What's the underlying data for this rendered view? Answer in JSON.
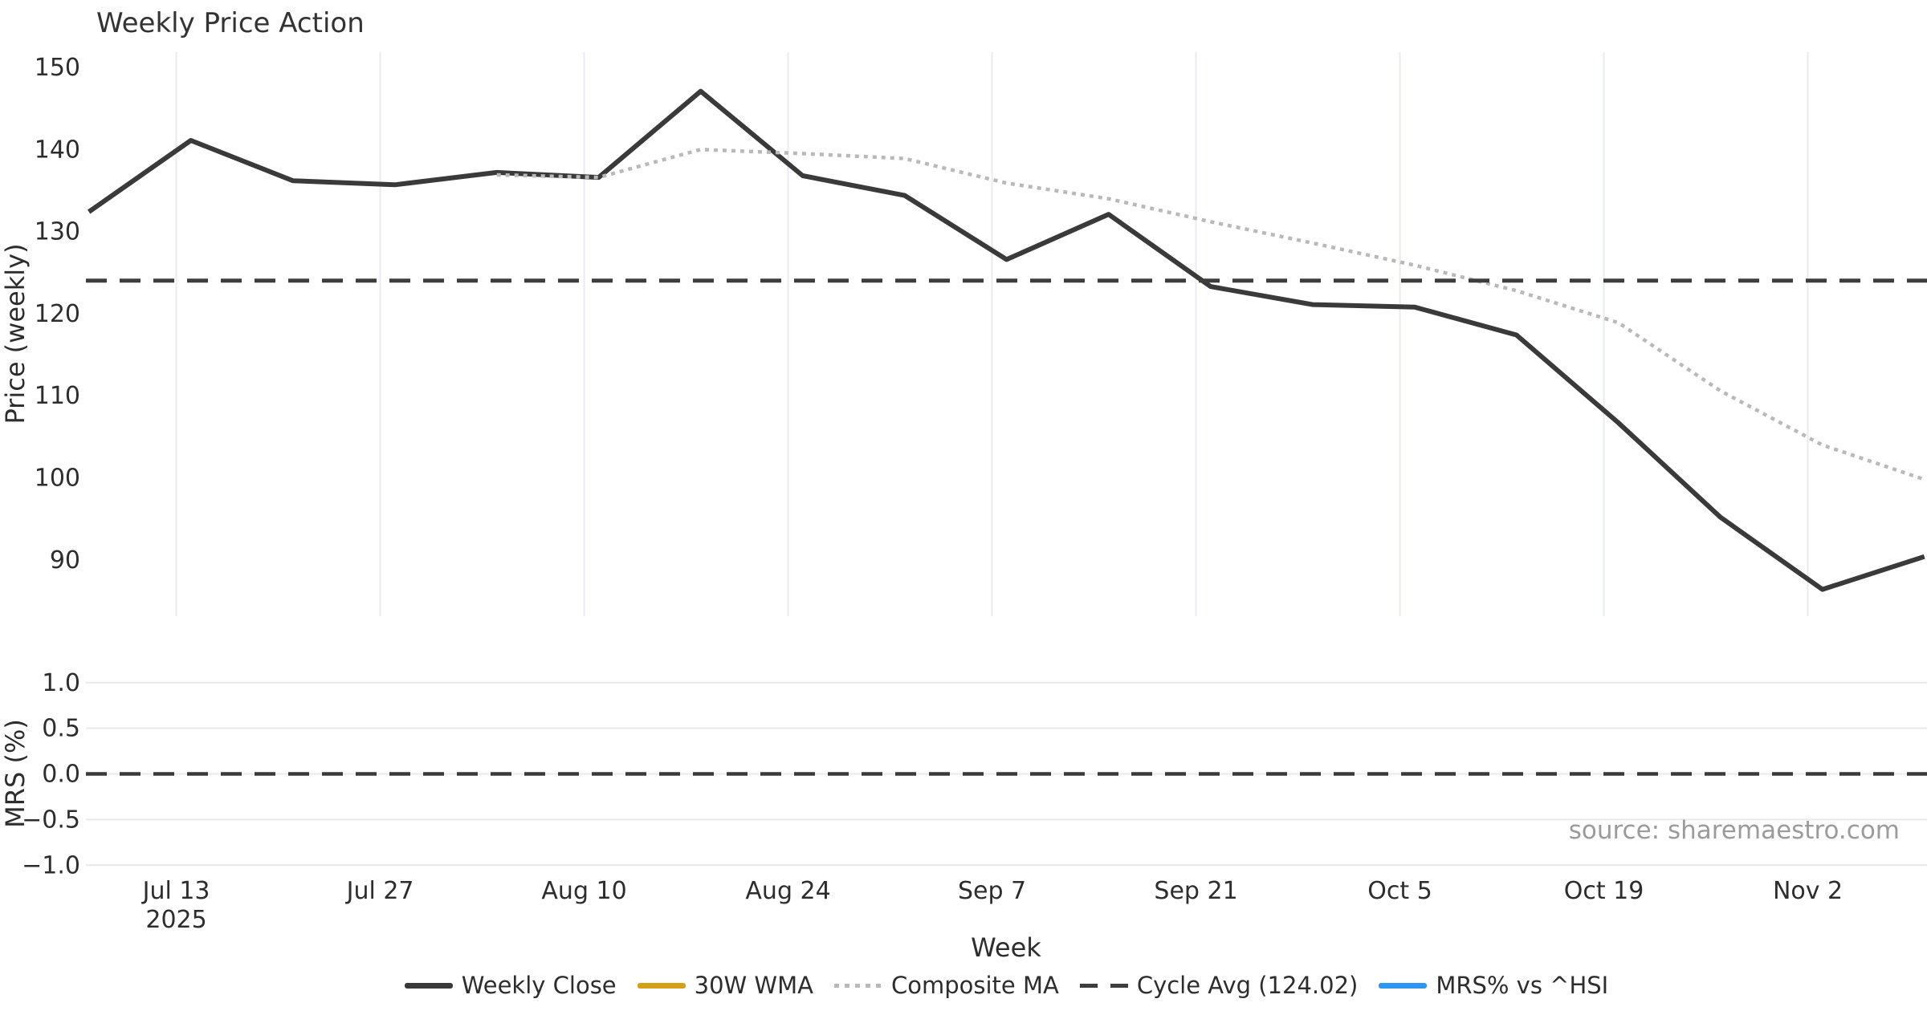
{
  "title": "Weekly Price Action",
  "source_credit": "source: sharemaestro.com",
  "colors": {
    "background": "#ffffff",
    "text": "#2d2d2d",
    "weekly_close": "#3a3a3a",
    "wma_gold": "#d4a017",
    "composite_gray": "#b9b9b9",
    "cycle_dash": "#3d3d3d",
    "mrs_blue": "#2e96f0",
    "grid_vertical": "#e9ecf3",
    "grid_horizontal": "#e9e9e9",
    "source_text": "#9b9b9b"
  },
  "chart_data": {
    "type": "line",
    "title": "Weekly Price Action",
    "xlabel": "Week",
    "x_unit_days": "days since first weekly point (Mon 2025-07-07)",
    "x_ticks": [
      {
        "day": 6,
        "label": "Jul 13",
        "sublabel": "2025"
      },
      {
        "day": 20,
        "label": "Jul 27",
        "sublabel": ""
      },
      {
        "day": 34,
        "label": "Aug 10",
        "sublabel": ""
      },
      {
        "day": 48,
        "label": "Aug 24",
        "sublabel": ""
      },
      {
        "day": 62,
        "label": "Sep 7",
        "sublabel": ""
      },
      {
        "day": 76,
        "label": "Sep 21",
        "sublabel": ""
      },
      {
        "day": 90,
        "label": "Oct 5",
        "sublabel": ""
      },
      {
        "day": 104,
        "label": "Oct 19",
        "sublabel": ""
      },
      {
        "day": 118,
        "label": "Nov 2",
        "sublabel": ""
      }
    ],
    "xlim_days": [
      -0.2,
      126.2
    ],
    "grid": "vertical-on-price-panel, horizontal-on-mrs-panel",
    "legend_position": "bottom-center",
    "panels": [
      {
        "ylabel": "Price (weekly)",
        "ylim": [
          83.1,
          151.9
        ],
        "y_ticks": [
          {
            "v": 150,
            "label": "150"
          },
          {
            "v": 140,
            "label": "140"
          },
          {
            "v": 130,
            "label": "130"
          },
          {
            "v": 120,
            "label": "120"
          },
          {
            "v": 110,
            "label": "110"
          },
          {
            "v": 100,
            "label": "100"
          },
          {
            "v": 90,
            "label": "90"
          }
        ],
        "series": [
          {
            "name": "Weekly Close",
            "style": "solid",
            "color": "#3a3a3a",
            "line_width": 6,
            "visible": true,
            "days": [
              0,
              7,
              14,
              21,
              28,
              35,
              42,
              49,
              56,
              63,
              70,
              77,
              84,
              91,
              98,
              105,
              112,
              119,
              126
            ],
            "values": [
              132.4,
              141.1,
              136.2,
              135.7,
              137.2,
              136.6,
              147.1,
              136.8,
              134.4,
              126.6,
              132.1,
              123.3,
              121.1,
              120.8,
              117.4,
              106.7,
              95.2,
              86.4,
              90.4
            ]
          },
          {
            "name": "30W WMA",
            "style": "solid",
            "color": "#d4a017",
            "line_width": 6,
            "visible": false,
            "days": [],
            "values": []
          },
          {
            "name": "Composite MA",
            "style": "dotted",
            "color": "#b9b9b9",
            "line_width": 4.5,
            "visible": true,
            "days": [
              28,
              35,
              42,
              49,
              56,
              63,
              70,
              77,
              84,
              91,
              98,
              105,
              112,
              119,
              126
            ],
            "values": [
              136.9,
              136.6,
              140.0,
              139.5,
              138.9,
              135.9,
              134.0,
              131.2,
              128.6,
              125.9,
              122.8,
              118.9,
              110.6,
              104.0,
              99.8
            ]
          },
          {
            "name": "Cycle Avg (124.02)",
            "style": "dashed",
            "color": "#3d3d3d",
            "line_width": 5,
            "visible": true,
            "constant": 124.02
          }
        ]
      },
      {
        "ylabel": "MRS (%)",
        "ylim": [
          -1.06,
          1.05
        ],
        "y_ticks": [
          {
            "v": 1.0,
            "label": "1.0"
          },
          {
            "v": 0.5,
            "label": "0.5"
          },
          {
            "v": 0.0,
            "label": "0.0"
          },
          {
            "v": -0.5,
            "label": "−0.5"
          },
          {
            "v": -1.0,
            "label": "−1.0"
          }
        ],
        "series": [
          {
            "name": "MRS% vs ^HSI",
            "style": "solid",
            "color": "#2e96f0",
            "line_width": 5,
            "visible": false,
            "days": [],
            "values": []
          },
          {
            "name": "Zero line",
            "style": "dashed",
            "color": "#3a3a3a",
            "line_width": 4.5,
            "visible": true,
            "constant": 0
          }
        ]
      }
    ]
  },
  "legend": {
    "items": [
      {
        "label": "Weekly Close",
        "style": "solid",
        "color": "#3a3a3a"
      },
      {
        "label": "30W WMA",
        "style": "solid",
        "color": "#d4a017"
      },
      {
        "label": "Composite MA",
        "style": "dotted",
        "color": "#b9b9b9"
      },
      {
        "label": "Cycle Avg (124.02)",
        "style": "dashed",
        "color": "#3d3d3d"
      },
      {
        "label": "MRS% vs ^HSI",
        "style": "solid",
        "color": "#2e96f0"
      }
    ]
  }
}
